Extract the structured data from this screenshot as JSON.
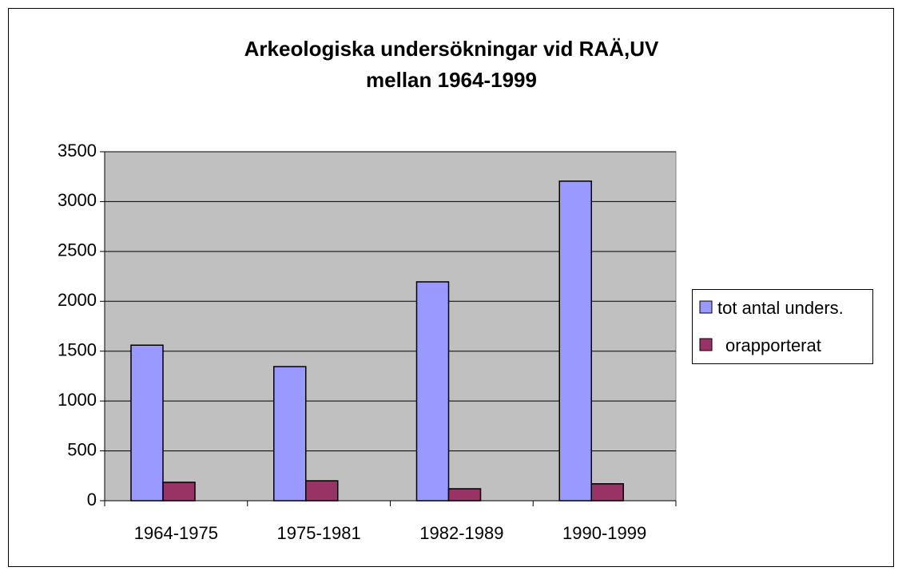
{
  "chart_data": {
    "type": "bar",
    "title": "Arkeologiska undersökningar vid RAÄ,UV",
    "subtitle": "mellan 1964-1999",
    "categories": [
      "1964-1975",
      "1975-1981",
      "1982-1989",
      "1990-1999"
    ],
    "series": [
      {
        "name": "tot antal unders.",
        "color": "#9999ff",
        "values": [
          1560,
          1345,
          2195,
          3205
        ]
      },
      {
        "name": "orapporterat",
        "color": "#993366",
        "values": [
          185,
          200,
          120,
          170
        ]
      }
    ],
    "ylim": [
      0,
      3500
    ],
    "yticks": [
      0,
      500,
      1000,
      1500,
      2000,
      2500,
      3000,
      3500
    ],
    "grid": true,
    "legend": "right"
  }
}
